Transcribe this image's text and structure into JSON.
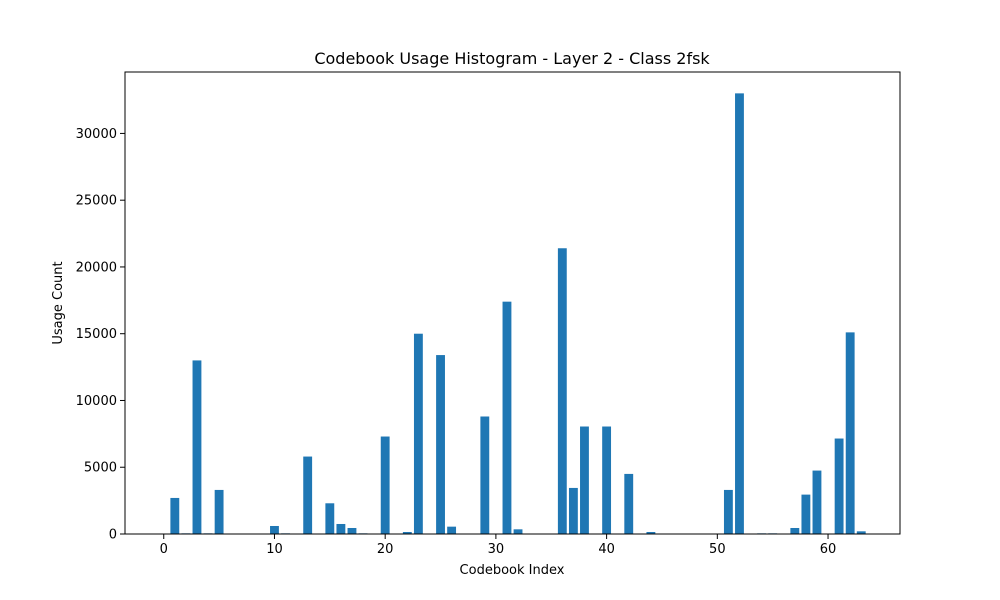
{
  "chart_data": {
    "type": "bar",
    "title": "Codebook Usage Histogram - Layer 2 - Class 2fsk",
    "xlabel": "Codebook Index",
    "ylabel": "Usage Count",
    "xlim": [
      -3.5,
      66.5
    ],
    "ylim": [
      0,
      34600
    ],
    "grid": false,
    "bar_color": "#1f77b4",
    "x_ticks": [
      0,
      10,
      20,
      30,
      40,
      50,
      60
    ],
    "y_ticks": [
      0,
      5000,
      10000,
      15000,
      20000,
      25000,
      30000
    ],
    "series": [
      {
        "x": [
          0,
          1,
          2,
          3,
          4,
          5,
          6,
          7,
          8,
          9,
          10,
          11,
          12,
          13,
          14,
          15,
          16,
          17,
          18,
          19,
          20,
          21,
          22,
          23,
          24,
          25,
          26,
          27,
          28,
          29,
          30,
          31,
          32,
          33,
          34,
          35,
          36,
          37,
          38,
          39,
          40,
          41,
          42,
          43,
          44,
          45,
          46,
          47,
          48,
          49,
          50,
          51,
          52,
          53,
          54,
          55,
          56,
          57,
          58,
          59,
          60,
          61,
          62,
          63
        ],
        "values": [
          0,
          2700,
          50,
          13000,
          50,
          3300,
          0,
          0,
          0,
          0,
          600,
          50,
          0,
          5800,
          0,
          2300,
          750,
          450,
          50,
          0,
          7300,
          0,
          150,
          15000,
          0,
          13400,
          550,
          0,
          0,
          8800,
          0,
          17400,
          350,
          0,
          0,
          0,
          21400,
          3450,
          8050,
          0,
          8050,
          0,
          4500,
          0,
          150,
          0,
          0,
          0,
          0,
          0,
          0,
          3300,
          33000,
          0,
          50,
          50,
          0,
          450,
          2950,
          4750,
          0,
          7150,
          15100,
          200
        ]
      }
    ]
  }
}
